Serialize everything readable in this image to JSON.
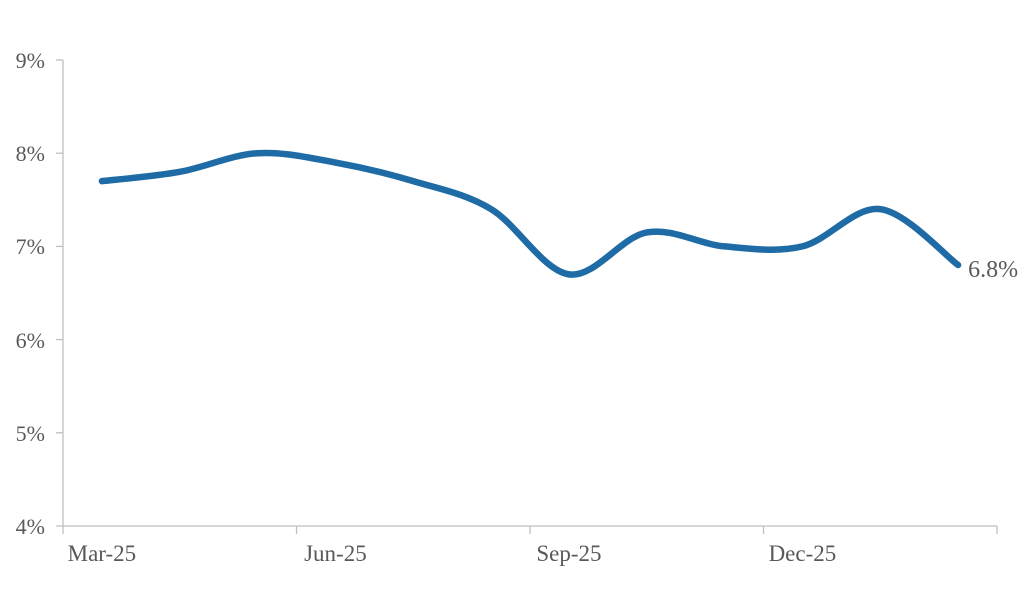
{
  "chart_data": {
    "type": "line",
    "title": "",
    "xlabel": "",
    "ylabel": "",
    "x": [
      "Mar-25",
      "Apr-25",
      "May-25",
      "Jun-25",
      "Jul-25",
      "Aug-25",
      "Sep-25",
      "Oct-25",
      "Nov-25",
      "Dec-25",
      "Jan-26",
      "Feb-26"
    ],
    "series": [
      {
        "name": "rate",
        "values": [
          7.7,
          7.8,
          8.0,
          7.9,
          7.7,
          7.4,
          6.7,
          7.15,
          7.0,
          7.0,
          7.4,
          6.8
        ]
      }
    ],
    "ylim": [
      4,
      9
    ],
    "y_tick_values": [
      4,
      5,
      6,
      7,
      8,
      9
    ],
    "y_tick_labels": [
      "4%",
      "5%",
      "6%",
      "7%",
      "8%",
      "9%"
    ],
    "x_tick_label_indices": [
      0,
      3,
      6,
      9
    ],
    "x_tick_labels": [
      "Mar-25",
      "Jun-25",
      "Sep-25",
      "Dec-25"
    ],
    "x_boundary_ticks_every_n_points": 3,
    "grid": false,
    "legend": "none",
    "smooth": true,
    "end_label": "6.8%",
    "colors": {
      "line": "#1e6ba6",
      "axis": "#bfbfbf",
      "labels": "#595959",
      "background": "#ffffff"
    }
  }
}
